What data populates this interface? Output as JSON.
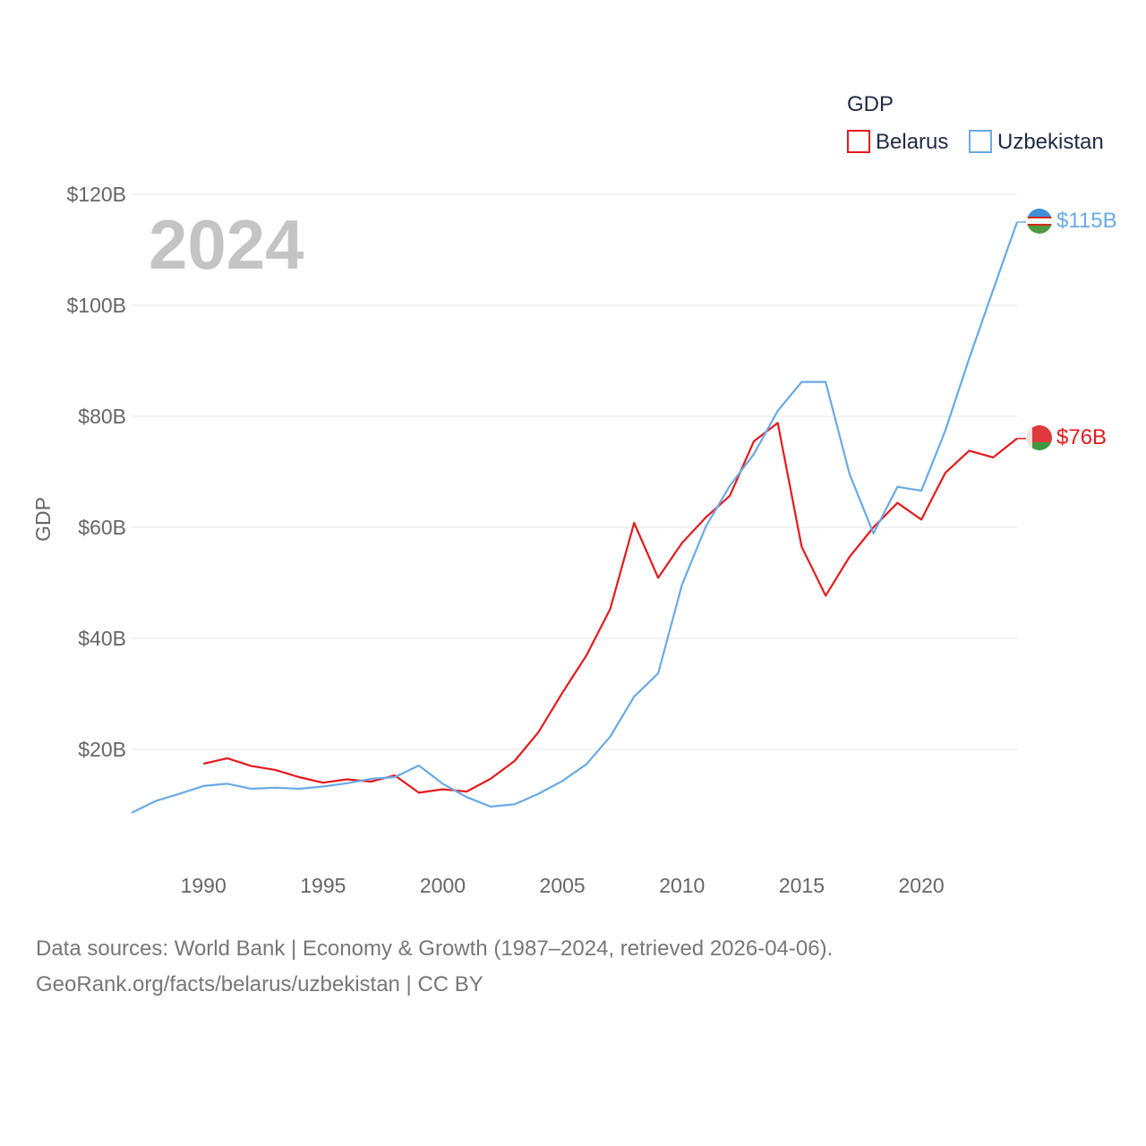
{
  "chart_data": {
    "type": "line",
    "title": "",
    "ylabel": "GDP",
    "xlabel": "",
    "xlim": [
      1987,
      2024
    ],
    "ylim": [
      0,
      120
    ],
    "x_ticks": [
      1990,
      1995,
      2000,
      2005,
      2010,
      2015,
      2020
    ],
    "y_ticks": [
      20,
      40,
      60,
      80,
      100,
      120
    ],
    "y_tick_labels": [
      "$20B",
      "$40B",
      "$60B",
      "$80B",
      "$100B",
      "$120B"
    ],
    "legend": {
      "title": "GDP",
      "position": "top-right"
    },
    "year_label": "2024",
    "series": [
      {
        "name": "Belarus",
        "color": "#e31a1c",
        "flag": "belarus-flag-icon",
        "end_label": "$76B",
        "x": [
          1990,
          1991,
          1992,
          1993,
          1994,
          1995,
          1996,
          1997,
          1998,
          1999,
          2000,
          2001,
          2002,
          2003,
          2004,
          2005,
          2006,
          2007,
          2008,
          2009,
          2010,
          2011,
          2012,
          2013,
          2014,
          2015,
          2016,
          2017,
          2018,
          2019,
          2020,
          2021,
          2022,
          2023,
          2024
        ],
        "values": [
          17.4,
          18.4,
          17.0,
          16.3,
          15.0,
          14.0,
          14.6,
          14.2,
          15.3,
          12.2,
          12.8,
          12.4,
          14.7,
          17.9,
          23.1,
          30.2,
          36.9,
          45.3,
          60.8,
          50.9,
          57.2,
          61.8,
          65.7,
          75.5,
          78.8,
          56.5,
          47.7,
          54.7,
          60.0,
          64.4,
          61.4,
          69.8,
          73.8,
          72.6,
          76.0
        ]
      },
      {
        "name": "Uzbekistan",
        "color": "#6aaae5",
        "flag": "uzbekistan-flag-icon",
        "end_label": "$115B",
        "x": [
          1987,
          1988,
          1989,
          1990,
          1991,
          1992,
          1993,
          1994,
          1995,
          1996,
          1997,
          1998,
          1999,
          2000,
          2001,
          2002,
          2003,
          2004,
          2005,
          2006,
          2007,
          2008,
          2009,
          2010,
          2011,
          2012,
          2013,
          2014,
          2015,
          2016,
          2017,
          2018,
          2019,
          2020,
          2021,
          2022,
          2023,
          2024
        ],
        "values": [
          8.6,
          10.7,
          12.0,
          13.4,
          13.8,
          12.9,
          13.1,
          12.9,
          13.3,
          13.9,
          14.7,
          15.0,
          17.1,
          13.8,
          11.4,
          9.7,
          10.1,
          12.0,
          14.3,
          17.3,
          22.3,
          29.5,
          33.7,
          49.7,
          60.2,
          67.5,
          73.2,
          81.0,
          86.2,
          86.2,
          69.6,
          58.9,
          67.3,
          66.6,
          77.4,
          90.4,
          102.8,
          115.0
        ]
      }
    ]
  },
  "footer": {
    "line1": "Data sources: World Bank | Economy & Growth (1987–2024, retrieved 2026-04-06).",
    "line2": "GeoRank.org/facts/belarus/uzbekistan | CC BY"
  }
}
